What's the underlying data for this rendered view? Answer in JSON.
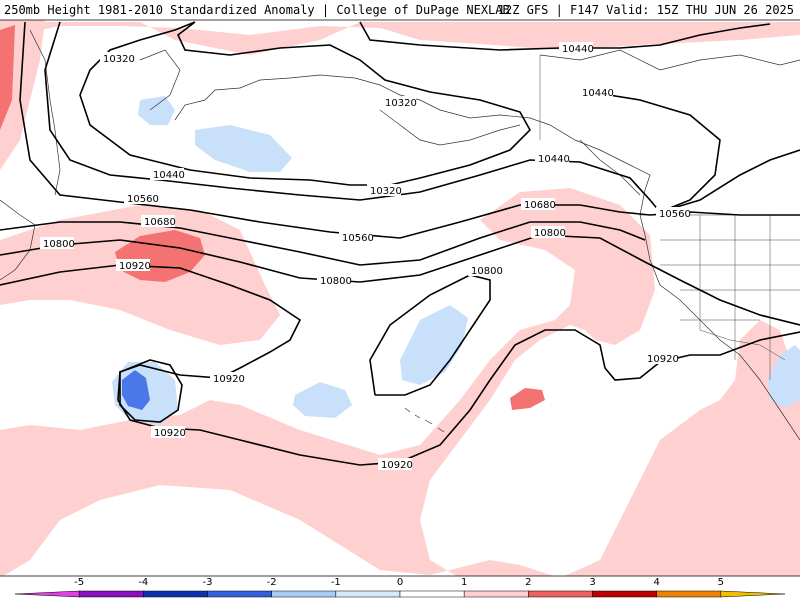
{
  "header": {
    "left": "250mb Height 1981-2010 Standardized Anomaly | College of DuPage NEXLAB",
    "right": "12Z GFS | F147 Valid: 15Z THU JUN 26 2025"
  },
  "contour_labels": [
    {
      "id": "l1",
      "text": "10320"
    },
    {
      "id": "l2",
      "text": "10320"
    },
    {
      "id": "l3",
      "text": "10320"
    },
    {
      "id": "l4",
      "text": "10440"
    },
    {
      "id": "l5",
      "text": "10440"
    },
    {
      "id": "l6",
      "text": "10440"
    },
    {
      "id": "l7",
      "text": "10440"
    },
    {
      "id": "l8",
      "text": "10560"
    },
    {
      "id": "l9",
      "text": "10560"
    },
    {
      "id": "l10",
      "text": "10560"
    },
    {
      "id": "l11",
      "text": "10680"
    },
    {
      "id": "l12",
      "text": "10680"
    },
    {
      "id": "l13",
      "text": "10800"
    },
    {
      "id": "l14",
      "text": "10800"
    },
    {
      "id": "l15",
      "text": "10800"
    },
    {
      "id": "l16",
      "text": "10800"
    },
    {
      "id": "l17",
      "text": "10920"
    },
    {
      "id": "l18",
      "text": "10920"
    },
    {
      "id": "l19",
      "text": "10920"
    },
    {
      "id": "l20",
      "text": "10920"
    },
    {
      "id": "l21",
      "text": "10920"
    }
  ],
  "colorbar": {
    "ticks": [
      "-5",
      "-4",
      "-3",
      "-2",
      "-1",
      "0",
      "1",
      "2",
      "3",
      "4",
      "5"
    ],
    "colors": [
      "#e040e0",
      "#8a10c0",
      "#1030b0",
      "#3060e0",
      "#a8ccf8",
      "#d8e8fc",
      "#ffffff",
      "#ffd0d0",
      "#f06060",
      "#c00000",
      "#f08000",
      "#f0c000"
    ]
  }
}
